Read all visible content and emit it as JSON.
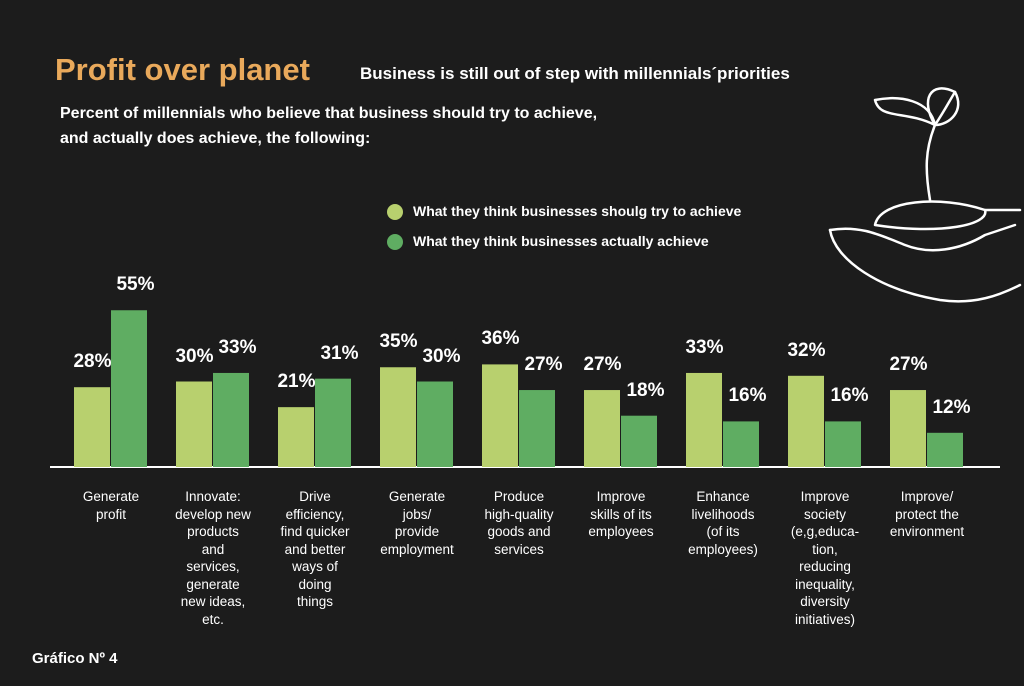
{
  "chart_data": {
    "type": "bar",
    "title": "Profit over planet",
    "subtitle": "Business is still out of step with millennials´priorities",
    "description": "Percent of millennials who believe that business should try to achieve,\nand actually does achieve, the following:",
    "footnote": "Gráfico Nº 4",
    "categories": [
      "Generate\nprofit",
      "Innovate:\ndevelop new\nproducts\nand\nservices,\ngenerate\nnew ideas,\netc.",
      "Drive\nefficiency,\nfind quicker\nand better\nways of\ndoing\nthings",
      "Generate\njobs/\nprovide\nemployment",
      "Produce\nhigh-quality\ngoods and\nservices",
      "Improve\nskills of its\nemployees",
      "Enhance\nlivelihoods\n(of its\nemployees)",
      "Improve\nsociety\n(e,g,educa-\ntion,\nreducing\ninequality,\ndiversity\ninitiatives)",
      "Improve/\nprotect the\nenvironment"
    ],
    "series": [
      {
        "name": "What they think businesses shoulg try to achieve",
        "color": "#b8d06e",
        "values": [
          28,
          30,
          21,
          35,
          36,
          27,
          33,
          32,
          27
        ],
        "value_labels": [
          "28%",
          "30%",
          "21%",
          "35%",
          "36%",
          "27%",
          "33%",
          "32%",
          "27%"
        ]
      },
      {
        "name": "What they think businesses actually achieve",
        "color": "#5fad62",
        "values": [
          55,
          33,
          31,
          30,
          27,
          18,
          16,
          16,
          12
        ],
        "value_labels": [
          "55%",
          "33%",
          "31%",
          "30%",
          "27%",
          "18%",
          "16%",
          "16%",
          "12%"
        ]
      }
    ]
  }
}
